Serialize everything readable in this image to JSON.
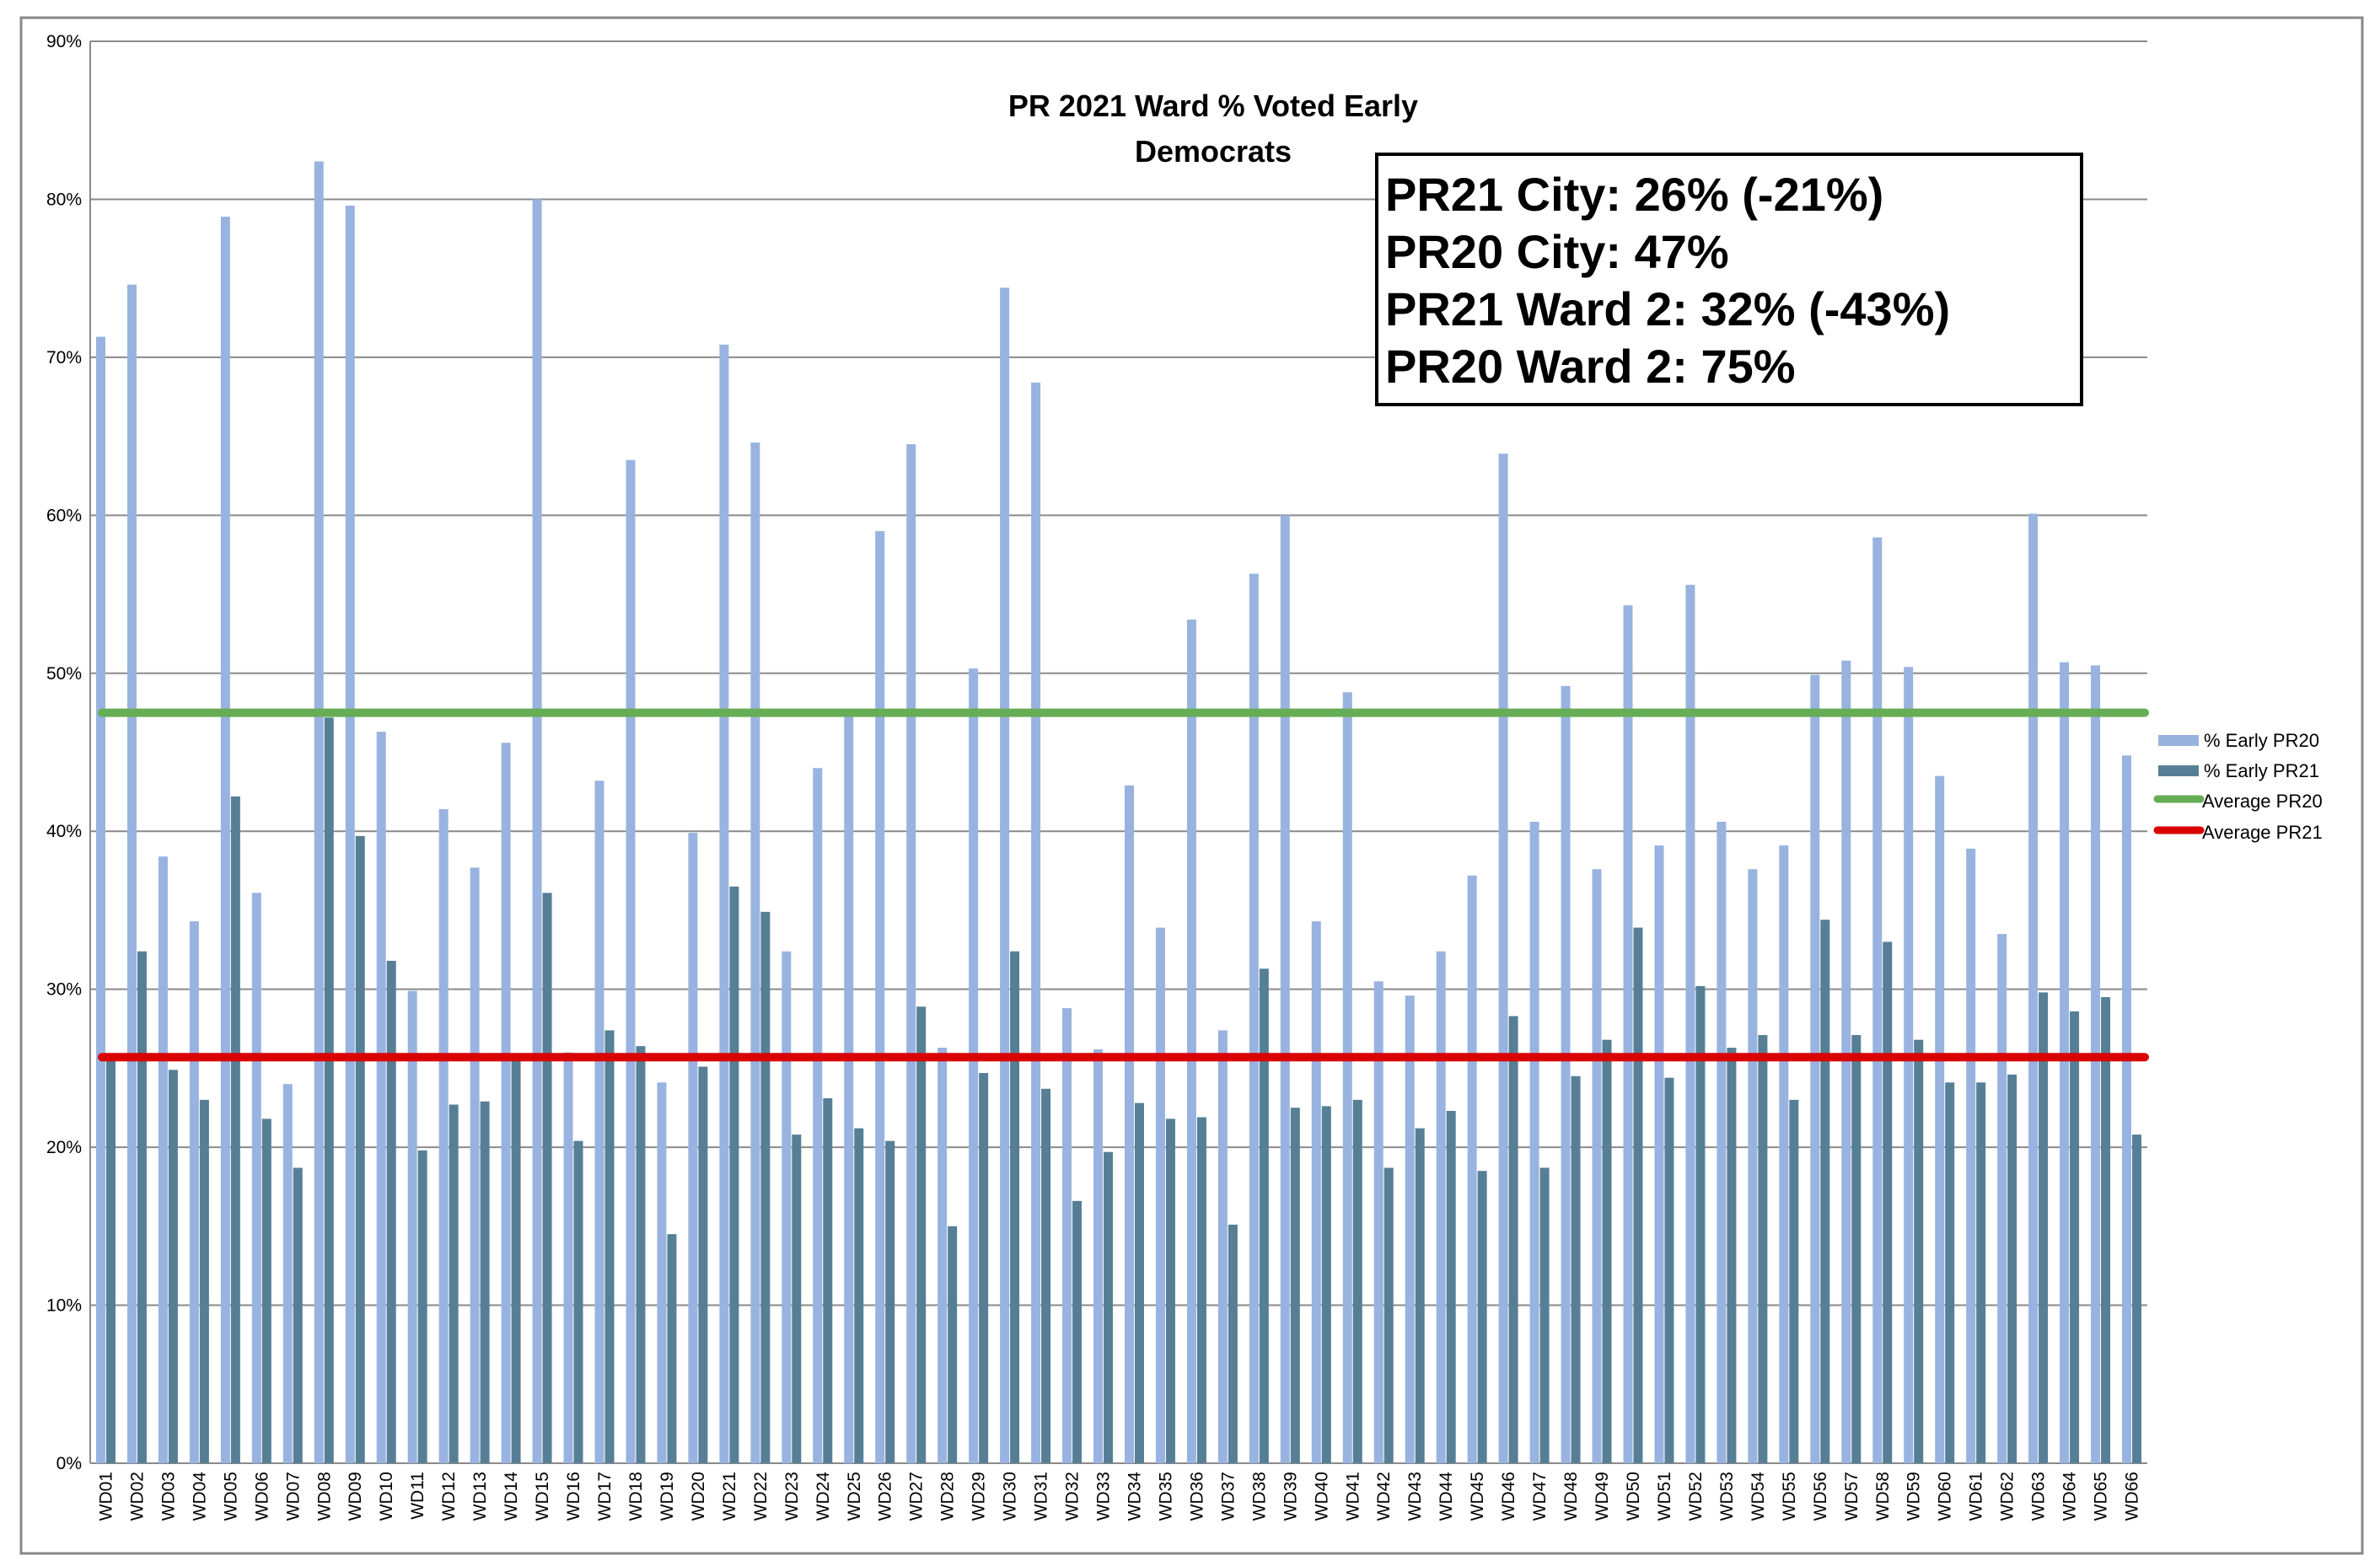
{
  "chart_data": {
    "type": "bar",
    "title": "PR 2021 Ward % Voted Early",
    "subtitle": "Democrats",
    "xlabel": "",
    "ylabel": "",
    "ylim": [
      0,
      90
    ],
    "yticks": [
      "0%",
      "10%",
      "20%",
      "30%",
      "40%",
      "50%",
      "60%",
      "70%",
      "80%",
      "90%"
    ],
    "grid": true,
    "legend_position": "right",
    "categories": [
      "WD01",
      "WD02",
      "WD03",
      "WD04",
      "WD05",
      "WD06",
      "WD07",
      "WD08",
      "WD09",
      "WD10",
      "WD11",
      "WD12",
      "WD13",
      "WD14",
      "WD15",
      "WD16",
      "WD17",
      "WD18",
      "WD19",
      "WD20",
      "WD21",
      "WD22",
      "WD23",
      "WD24",
      "WD25",
      "WD26",
      "WD27",
      "WD28",
      "WD29",
      "WD30",
      "WD31",
      "WD32",
      "WD33",
      "WD34",
      "WD35",
      "WD36",
      "WD37",
      "WD38",
      "WD39",
      "WD40",
      "WD41",
      "WD42",
      "WD43",
      "WD44",
      "WD45",
      "WD46",
      "WD47",
      "WD48",
      "WD49",
      "WD50",
      "WD51",
      "WD52",
      "WD53",
      "WD54",
      "WD55",
      "WD56",
      "WD57",
      "WD58",
      "WD59",
      "WD60",
      "WD61",
      "WD62",
      "WD63",
      "WD64",
      "WD65",
      "WD66"
    ],
    "series": [
      {
        "name": "% Early PR20",
        "color": "#99b3e0",
        "values": [
          71.3,
          74.6,
          38.4,
          34.3,
          78.9,
          36.1,
          24.0,
          82.4,
          79.6,
          46.3,
          29.9,
          41.4,
          37.7,
          45.6,
          80.0,
          26.0,
          43.2,
          63.5,
          24.1,
          39.9,
          70.8,
          64.6,
          32.4,
          44.0,
          47.3,
          59.0,
          64.5,
          26.3,
          50.3,
          74.4,
          68.4,
          28.8,
          26.2,
          42.9,
          33.9,
          53.4,
          27.4,
          56.3,
          60.0,
          34.3,
          48.8,
          30.5,
          29.6,
          32.4,
          37.2,
          63.9,
          40.6,
          49.2,
          37.6,
          54.3,
          39.1,
          55.6,
          40.6,
          37.6,
          39.1,
          49.9,
          50.8,
          58.6,
          50.4,
          43.5,
          38.9,
          33.5,
          60.1,
          50.7,
          50.5,
          44.8
        ]
      },
      {
        "name": "% Early PR21",
        "color": "#567f96",
        "values": [
          25.7,
          32.4,
          24.9,
          23.0,
          42.2,
          21.8,
          18.7,
          47.2,
          39.7,
          31.8,
          19.8,
          22.7,
          22.9,
          25.5,
          36.1,
          20.4,
          27.4,
          26.4,
          14.5,
          25.1,
          36.5,
          34.9,
          20.8,
          23.1,
          21.2,
          20.4,
          28.9,
          15.0,
          24.7,
          32.4,
          23.7,
          16.6,
          19.7,
          22.8,
          21.8,
          21.9,
          15.1,
          31.3,
          22.5,
          22.6,
          23.0,
          18.7,
          21.2,
          22.3,
          18.5,
          28.3,
          18.7,
          24.5,
          26.8,
          33.9,
          24.4,
          30.2,
          26.3,
          27.1,
          23.0,
          34.4,
          27.1,
          33.0,
          26.8,
          24.1,
          24.1,
          24.6,
          29.8,
          28.6,
          29.5,
          20.8
        ]
      }
    ],
    "reference_lines": [
      {
        "name": "Average PR20",
        "value": 47.5,
        "color": "#66ad55"
      },
      {
        "name": "Average PR21",
        "value": 25.7,
        "color": "#d90000"
      }
    ],
    "annotation_box": [
      "PR21 City:  26% (-21%)",
      "PR20 City:  47%",
      "PR21 Ward 2:  32% (-43%)",
      "PR20 Ward 2:  75%"
    ]
  }
}
